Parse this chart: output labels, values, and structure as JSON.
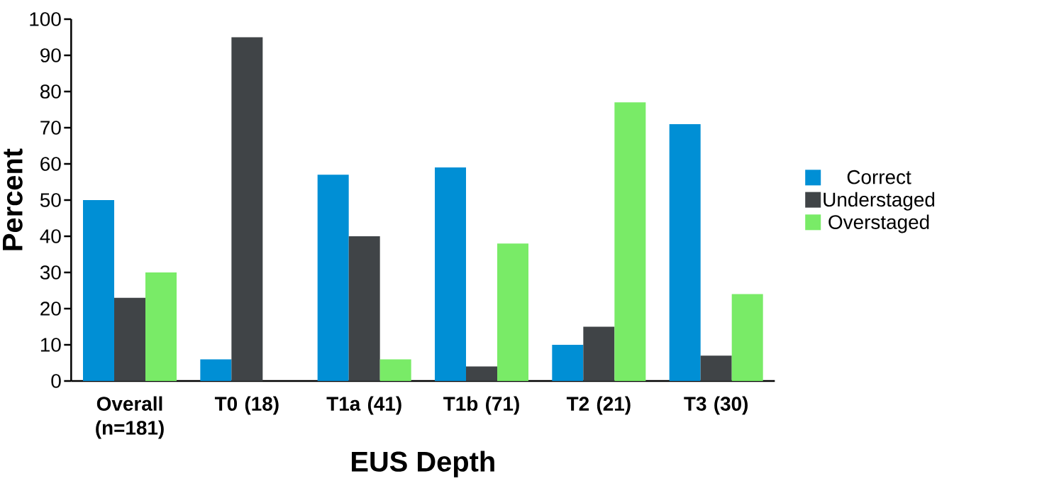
{
  "chart_data": {
    "type": "bar",
    "xlabel": "EUS Depth",
    "ylabel": "Percent",
    "categories": [
      "Overall (n=181)",
      "T0 (18)",
      "T1a (41)",
      "T1b (71)",
      "T2 (21)",
      "T3 (30)"
    ],
    "series": [
      {
        "name": "Correct",
        "color": "#008fd5",
        "values": [
          50,
          6,
          57,
          59,
          10,
          71
        ]
      },
      {
        "name": "Understaged",
        "color": "#404447",
        "values": [
          23,
          95,
          40,
          4,
          15,
          7
        ]
      },
      {
        "name": "Overstaged",
        "color": "#79eb67",
        "values": [
          30,
          0,
          6,
          38,
          77,
          24
        ]
      }
    ],
    "ylim": [
      0,
      100
    ],
    "yticks": [
      0,
      10,
      20,
      30,
      40,
      50,
      60,
      70,
      80,
      90,
      100
    ],
    "grid": false,
    "legend": "right"
  }
}
